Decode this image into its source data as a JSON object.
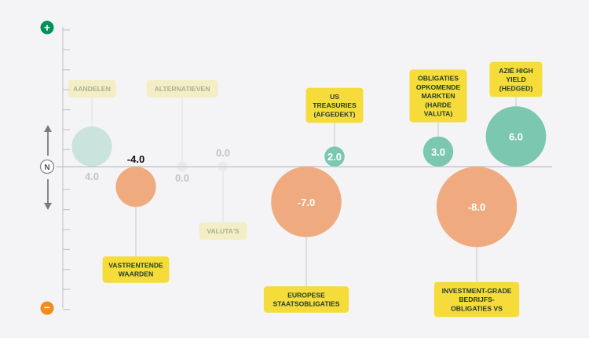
{
  "colors": {
    "positive": "#7cc7b0",
    "negative": "#efab7f",
    "neutral": "#d6d6d6",
    "label_bg": "#f5dc3a",
    "label_text": "#1e3a2e",
    "top_badge": "#00915a",
    "bottom_badge": "#f28c1a",
    "axis": "#c7c7cd"
  },
  "axis_badges": {
    "top": "+",
    "neutral": "N",
    "bottom": "−"
  },
  "chart_data": {
    "type": "bubble",
    "ylim": [
      -10,
      10
    ],
    "grid": false,
    "series": [
      {
        "label": "AANDELEN",
        "value": 4.0,
        "value_label": "4.0",
        "faded": true
      },
      {
        "label": "VASTRENTENDE WAARDEN",
        "value": -4.0,
        "value_label": "-4.0",
        "faded": false
      },
      {
        "label": "ALTERNATIEVEN",
        "value": 0.0,
        "value_label": "0.0",
        "faded": true
      },
      {
        "label": "VALUTA'S",
        "value": 0.0,
        "value_label": "0.0",
        "faded": true
      },
      {
        "label": "US TREASURIES (AFGEDEKT)",
        "value": 2.0,
        "value_label": "2.0",
        "faded": false
      },
      {
        "label": "EUROPESE STAATSOBLIGATIES",
        "value": -7.0,
        "value_label": "-7.0",
        "faded": false
      },
      {
        "label": "OBLIGATIES OPKOMENDE MARKTEN (HARDE VALUTA)",
        "value": 3.0,
        "value_label": "3.0",
        "faded": false
      },
      {
        "label": "INVESTMENT-GRADE BEDRIJFS-OBLIGATIES VS",
        "value": -8.0,
        "value_label": "-8.0",
        "faded": false
      },
      {
        "label": "AZIË HIGH YIELD (HEDGED)",
        "value": 6.0,
        "value_label": "6.0",
        "faded": false
      }
    ]
  }
}
